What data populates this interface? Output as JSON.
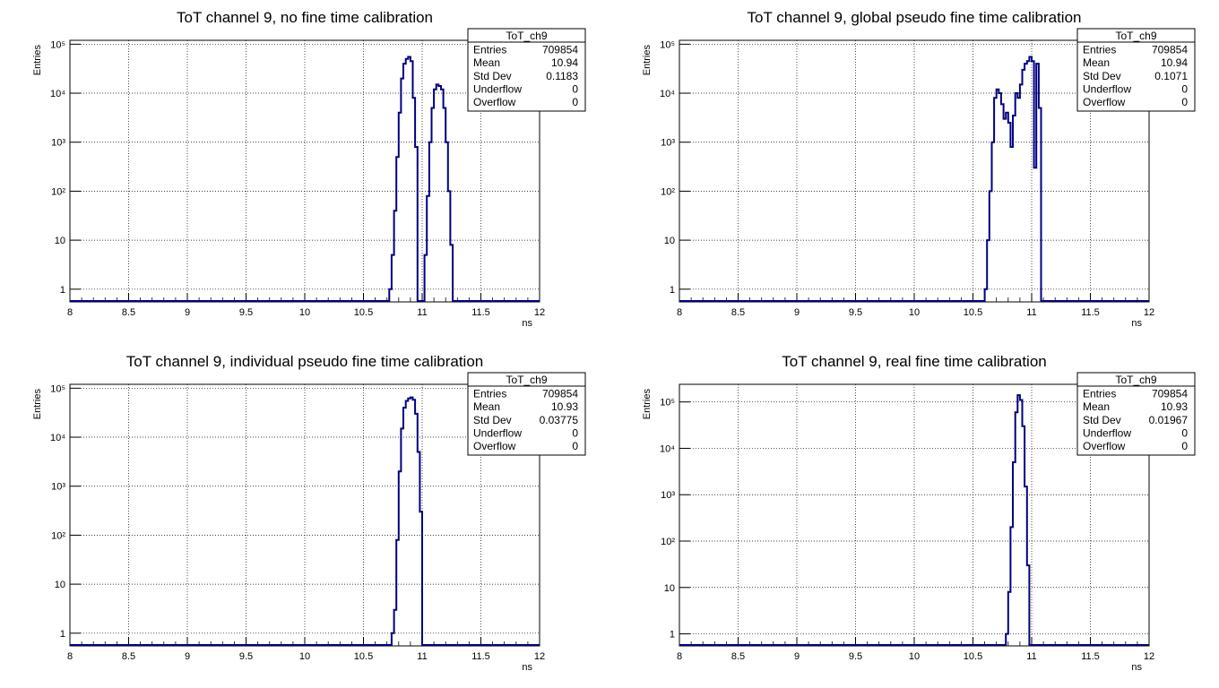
{
  "colors": {
    "hist": "#000080",
    "axis": "#000000",
    "grid": "#000000",
    "background": "#ffffff"
  },
  "chart_data": [
    {
      "type": "histogram",
      "title": "ToT channel 9, no fine time calibration",
      "xlabel": "ns",
      "ylabel": "Entries",
      "xlim": [
        8,
        12
      ],
      "ylim": [
        0.55,
        120000
      ],
      "yscale": "log",
      "grid": true,
      "legend_position": "top-right",
      "xticks": [
        "8",
        "8.5",
        "9",
        "9.5",
        "10",
        "10.5",
        "11",
        "11.5",
        "12"
      ],
      "yticks": [
        {
          "v": 1,
          "label": "1"
        },
        {
          "v": 10,
          "label": "10"
        },
        {
          "v": 100,
          "label": "10²"
        },
        {
          "v": 1000,
          "label": "10³"
        },
        {
          "v": 10000,
          "label": "10⁴"
        },
        {
          "v": 100000,
          "label": "10⁵"
        }
      ],
      "stats": {
        "name": "ToT_ch9",
        "rows": [
          {
            "label": "Entries",
            "value": "709854"
          },
          {
            "label": "Mean",
            "value": "10.94"
          },
          {
            "label": "Std Dev",
            "value": "0.1183"
          },
          {
            "label": "Underflow",
            "value": "0"
          },
          {
            "label": "Overflow",
            "value": "0"
          }
        ]
      },
      "points": [
        [
          10.72,
          0.55
        ],
        [
          10.72,
          1
        ],
        [
          10.74,
          1
        ],
        [
          10.74,
          5
        ],
        [
          10.76,
          40
        ],
        [
          10.78,
          500
        ],
        [
          10.8,
          4000
        ],
        [
          10.82,
          20000
        ],
        [
          10.84,
          40000
        ],
        [
          10.86,
          50000
        ],
        [
          10.88,
          55000
        ],
        [
          10.9,
          45000
        ],
        [
          10.92,
          8000
        ],
        [
          10.94,
          800
        ],
        [
          10.96,
          50
        ],
        [
          10.96,
          0.55
        ],
        [
          11.0,
          0.55
        ],
        [
          11.02,
          5
        ],
        [
          11.04,
          80
        ],
        [
          11.06,
          1000
        ],
        [
          11.08,
          5000
        ],
        [
          11.1,
          12000
        ],
        [
          11.12,
          15000
        ],
        [
          11.14,
          14000
        ],
        [
          11.16,
          12000
        ],
        [
          11.18,
          5000
        ],
        [
          11.2,
          1000
        ],
        [
          11.22,
          100
        ],
        [
          11.24,
          8
        ],
        [
          11.26,
          1
        ],
        [
          11.26,
          0.55
        ]
      ]
    },
    {
      "type": "histogram",
      "title": "ToT channel 9, global pseudo fine time calibration",
      "xlabel": "ns",
      "ylabel": "Entries",
      "xlim": [
        8,
        12
      ],
      "ylim": [
        0.55,
        120000
      ],
      "yscale": "log",
      "grid": true,
      "legend_position": "top-right",
      "xticks": [
        "8",
        "8.5",
        "9",
        "9.5",
        "10",
        "10.5",
        "11",
        "11.5",
        "12"
      ],
      "yticks": [
        {
          "v": 1,
          "label": "1"
        },
        {
          "v": 10,
          "label": "10"
        },
        {
          "v": 100,
          "label": "10²"
        },
        {
          "v": 1000,
          "label": "10³"
        },
        {
          "v": 10000,
          "label": "10⁴"
        },
        {
          "v": 100000,
          "label": "10⁵"
        }
      ],
      "stats": {
        "name": "ToT_ch9",
        "rows": [
          {
            "label": "Entries",
            "value": "709854"
          },
          {
            "label": "Mean",
            "value": "10.94"
          },
          {
            "label": "Std Dev",
            "value": "0.1071"
          },
          {
            "label": "Underflow",
            "value": "0"
          },
          {
            "label": "Overflow",
            "value": "0"
          }
        ]
      },
      "points": [
        [
          10.6,
          0.55
        ],
        [
          10.6,
          1
        ],
        [
          10.62,
          10
        ],
        [
          10.64,
          100
        ],
        [
          10.66,
          1000
        ],
        [
          10.68,
          8000
        ],
        [
          10.7,
          12000
        ],
        [
          10.72,
          10000
        ],
        [
          10.74,
          6000
        ],
        [
          10.76,
          3000
        ],
        [
          10.78,
          4000
        ],
        [
          10.8,
          2500
        ],
        [
          10.82,
          800
        ],
        [
          10.84,
          3500
        ],
        [
          10.86,
          10000
        ],
        [
          10.88,
          8000
        ],
        [
          10.9,
          15000
        ],
        [
          10.92,
          30000
        ],
        [
          10.94,
          40000
        ],
        [
          10.96,
          45000
        ],
        [
          10.98,
          55000
        ],
        [
          11.0,
          45000
        ],
        [
          11.02,
          300
        ],
        [
          11.04,
          40000
        ],
        [
          11.06,
          5000
        ],
        [
          11.08,
          0.55
        ]
      ]
    },
    {
      "type": "histogram",
      "title": "ToT channel 9, individual pseudo fine time calibration",
      "xlabel": "ns",
      "ylabel": "Entries",
      "xlim": [
        8,
        12
      ],
      "ylim": [
        0.55,
        120000
      ],
      "yscale": "log",
      "grid": true,
      "legend_position": "top-right",
      "xticks": [
        "8",
        "8.5",
        "9",
        "9.5",
        "10",
        "10.5",
        "11",
        "11.5",
        "12"
      ],
      "yticks": [
        {
          "v": 1,
          "label": "1"
        },
        {
          "v": 10,
          "label": "10"
        },
        {
          "v": 100,
          "label": "10²"
        },
        {
          "v": 1000,
          "label": "10³"
        },
        {
          "v": 10000,
          "label": "10⁴"
        },
        {
          "v": 100000,
          "label": "10⁵"
        }
      ],
      "stats": {
        "name": "ToT_ch9",
        "rows": [
          {
            "label": "Entries",
            "value": "709854"
          },
          {
            "label": "Mean",
            "value": "10.93"
          },
          {
            "label": "Std Dev",
            "value": "0.03775"
          },
          {
            "label": "Underflow",
            "value": "0"
          },
          {
            "label": "Overflow",
            "value": "0"
          }
        ]
      },
      "points": [
        [
          10.74,
          0.55
        ],
        [
          10.74,
          1
        ],
        [
          10.76,
          3
        ],
        [
          10.78,
          80
        ],
        [
          10.8,
          2000
        ],
        [
          10.82,
          15000
        ],
        [
          10.84,
          40000
        ],
        [
          10.86,
          55000
        ],
        [
          10.88,
          62000
        ],
        [
          10.9,
          65000
        ],
        [
          10.92,
          58000
        ],
        [
          10.94,
          30000
        ],
        [
          10.96,
          5000
        ],
        [
          10.98,
          300
        ],
        [
          11.0,
          10
        ],
        [
          11.0,
          0.55
        ]
      ]
    },
    {
      "type": "histogram",
      "title": "ToT channel 9, real fine time calibration",
      "xlabel": "ns",
      "ylabel": "Entries",
      "xlim": [
        8,
        12
      ],
      "ylim": [
        0.55,
        240000
      ],
      "yscale": "log",
      "grid": true,
      "legend_position": "top-right",
      "xticks": [
        "8",
        "8.5",
        "9",
        "9.5",
        "10",
        "10.5",
        "11",
        "11.5",
        "12"
      ],
      "yticks": [
        {
          "v": 1,
          "label": "1"
        },
        {
          "v": 10,
          "label": "10"
        },
        {
          "v": 100,
          "label": "10²"
        },
        {
          "v": 1000,
          "label": "10³"
        },
        {
          "v": 10000,
          "label": "10⁴"
        },
        {
          "v": 100000,
          "label": "10⁵"
        }
      ],
      "stats": {
        "name": "ToT_ch9",
        "rows": [
          {
            "label": "Entries",
            "value": "709854"
          },
          {
            "label": "Mean",
            "value": "10.93"
          },
          {
            "label": "Std Dev",
            "value": "0.01967"
          },
          {
            "label": "Underflow",
            "value": "0"
          },
          {
            "label": "Overflow",
            "value": "0"
          }
        ]
      },
      "points": [
        [
          10.78,
          0.55
        ],
        [
          10.78,
          1
        ],
        [
          10.8,
          8
        ],
        [
          10.82,
          200
        ],
        [
          10.84,
          5000
        ],
        [
          10.86,
          60000
        ],
        [
          10.88,
          140000
        ],
        [
          10.9,
          110000
        ],
        [
          10.92,
          30000
        ],
        [
          10.94,
          1500
        ],
        [
          10.96,
          30
        ],
        [
          10.98,
          1
        ],
        [
          10.98,
          0.55
        ]
      ]
    }
  ]
}
